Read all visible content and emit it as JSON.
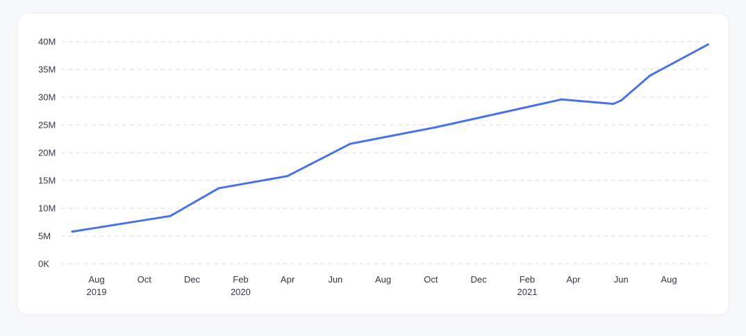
{
  "chart_data": {
    "type": "line",
    "title": "",
    "xlabel": "",
    "ylabel": "",
    "ylim": [
      0,
      40000000
    ],
    "grid": true,
    "legend": "none",
    "line_color": "#4a72e8",
    "y_ticks": [
      {
        "value": 0,
        "label": "0K"
      },
      {
        "value": 5000000,
        "label": "5M"
      },
      {
        "value": 10000000,
        "label": "10M"
      },
      {
        "value": 15000000,
        "label": "15M"
      },
      {
        "value": 20000000,
        "label": "20M"
      },
      {
        "value": 25000000,
        "label": "25M"
      },
      {
        "value": 30000000,
        "label": "30M"
      },
      {
        "value": 35000000,
        "label": "35M"
      },
      {
        "value": 40000000,
        "label": "40M"
      }
    ],
    "x_ticks": [
      {
        "date": "2019-08-01",
        "label": "Aug",
        "year": "2019"
      },
      {
        "date": "2019-10-01",
        "label": "Oct",
        "year": ""
      },
      {
        "date": "2019-12-01",
        "label": "Dec",
        "year": ""
      },
      {
        "date": "2020-02-01",
        "label": "Feb",
        "year": "2020"
      },
      {
        "date": "2020-04-01",
        "label": "Apr",
        "year": ""
      },
      {
        "date": "2020-06-01",
        "label": "Jun",
        "year": ""
      },
      {
        "date": "2020-08-01",
        "label": "Aug",
        "year": ""
      },
      {
        "date": "2020-10-01",
        "label": "Oct",
        "year": ""
      },
      {
        "date": "2020-12-01",
        "label": "Dec",
        "year": ""
      },
      {
        "date": "2021-02-01",
        "label": "Feb",
        "year": "2021"
      },
      {
        "date": "2021-04-01",
        "label": "Apr",
        "year": ""
      },
      {
        "date": "2021-06-01",
        "label": "Jun",
        "year": ""
      },
      {
        "date": "2021-08-01",
        "label": "Aug",
        "year": ""
      }
    ],
    "series": [
      {
        "points": [
          {
            "x": "2019-07-01",
            "y": 5800000
          },
          {
            "x": "2019-11-03",
            "y": 8600000
          },
          {
            "x": "2020-01-04",
            "y": 13600000
          },
          {
            "x": "2020-04-01",
            "y": 15800000
          },
          {
            "x": "2020-06-20",
            "y": 21600000
          },
          {
            "x": "2020-10-08",
            "y": 24600000
          },
          {
            "x": "2021-03-17",
            "y": 29600000
          },
          {
            "x": "2021-05-22",
            "y": 28800000
          },
          {
            "x": "2021-06-01",
            "y": 29400000
          },
          {
            "x": "2021-07-08",
            "y": 33900000
          },
          {
            "x": "2021-09-20",
            "y": 39500000
          }
        ]
      }
    ]
  }
}
